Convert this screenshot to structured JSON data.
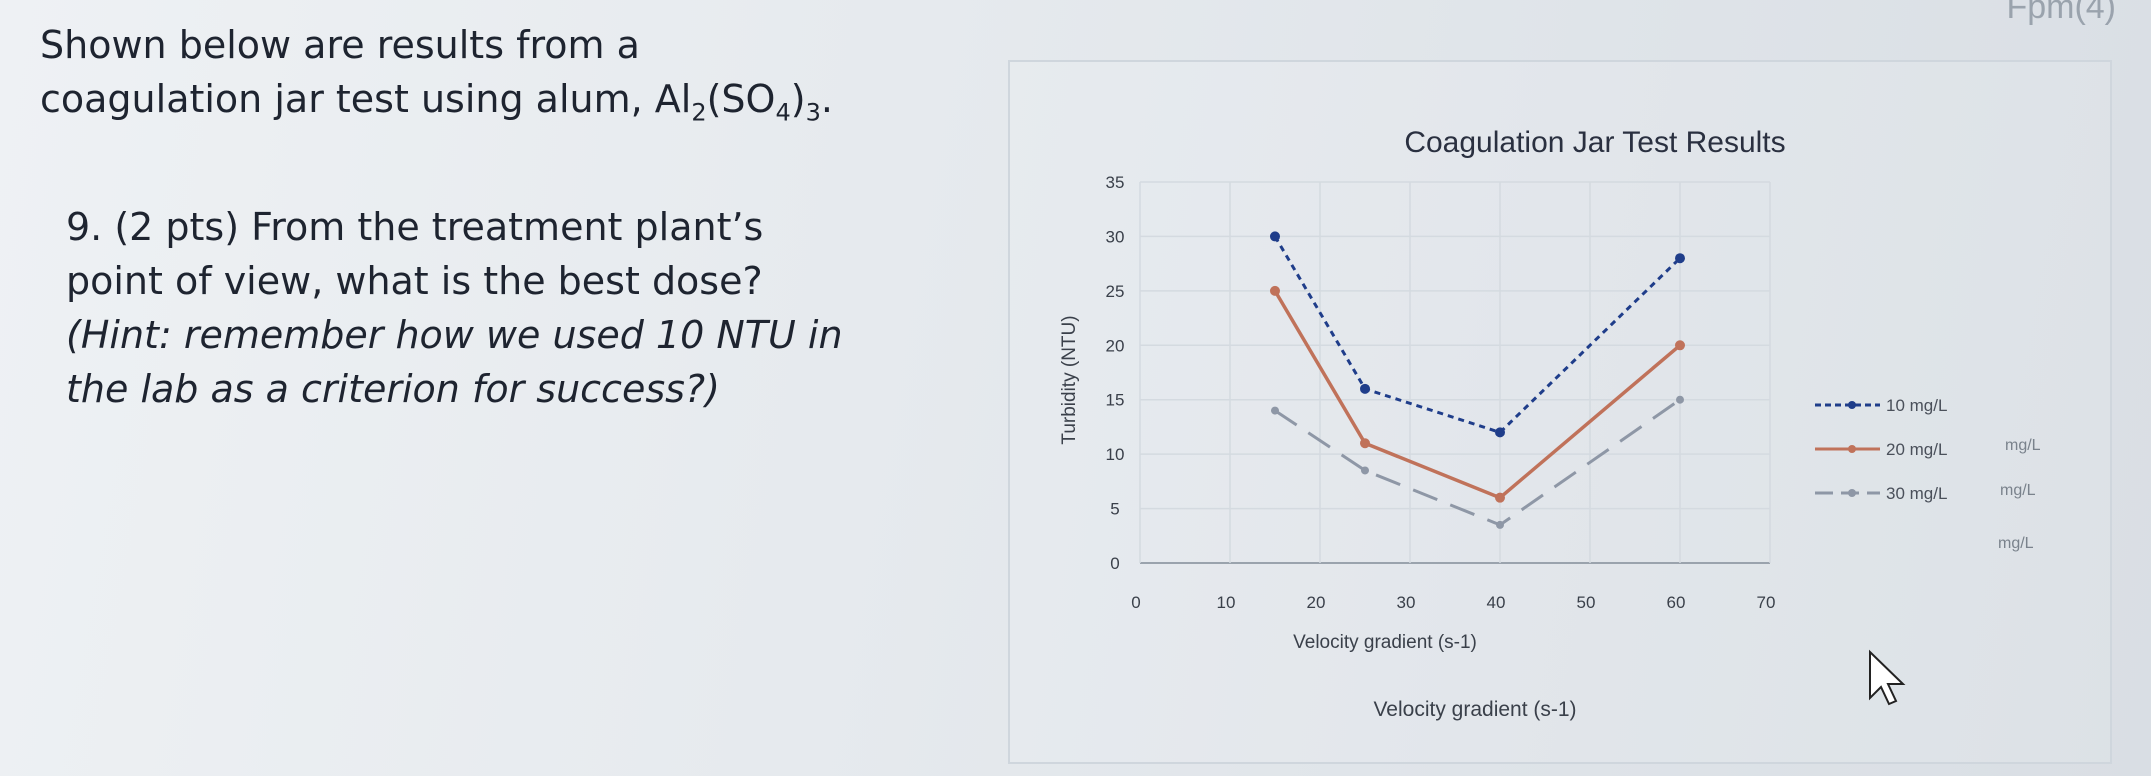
{
  "corner_text": "Fpm(4)",
  "question": {
    "intro_line1": "Shown below are results from a",
    "intro_line2_prefix": "coagulation jar test using alum, Al",
    "intro_sub1": "2",
    "intro_mid": "(SO",
    "intro_sub2": "4",
    "intro_end": ")",
    "intro_sub3": "3",
    "intro_period": ".",
    "q9_line1": "9. (2 pts)  From the treatment plant’s",
    "q9_line2": "point of view, what is the best dose?",
    "hint_line1": "(Hint: remember how we used 10 NTU in",
    "hint_line2": "the lab as a criterion for success?)"
  },
  "chart_data": {
    "type": "line",
    "title": "Coagulation Jar Test Results",
    "xlabel": "Velocity gradient (s-1)",
    "ylabel": "Turbidity (NTU)",
    "xlim": [
      0,
      70
    ],
    "ylim": [
      0,
      35
    ],
    "x_ticks": [
      "0",
      "10",
      "20",
      "30",
      "40",
      "50",
      "60",
      "70"
    ],
    "y_ticks": [
      "0",
      "5",
      "10",
      "15",
      "20",
      "25",
      "30",
      "35"
    ],
    "grid": true,
    "legend_position": "right",
    "series": [
      {
        "name": "10 mg/L",
        "x": [
          15,
          25,
          40,
          60
        ],
        "y": [
          30,
          16,
          12,
          28
        ],
        "color": "#1f3d8a",
        "style": "dashed-dots"
      },
      {
        "name": "20 mg/L",
        "x": [
          15,
          25,
          40,
          60
        ],
        "y": [
          25,
          11,
          6,
          20
        ],
        "color": "#c0725a",
        "style": "solid"
      },
      {
        "name": "30 mg/L",
        "x": [
          15,
          25,
          40,
          60
        ],
        "y": [
          14,
          8.5,
          3.5,
          15
        ],
        "color": "#8e97a6",
        "style": "long-dash"
      }
    ],
    "legend_extra_labels": [
      "mg/L",
      "mg/L",
      "mg/L"
    ],
    "caption": "Velocity gradient (s-1)"
  }
}
